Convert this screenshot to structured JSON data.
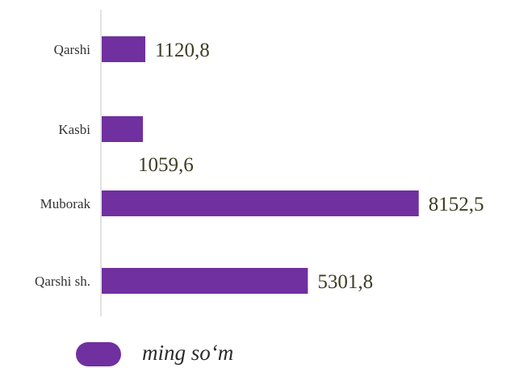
{
  "chart_data": {
    "type": "bar",
    "orientation": "horizontal",
    "categories": [
      "Qarshi",
      "Kasbi",
      "Muborak",
      "Qarshi sh."
    ],
    "series": [
      {
        "name": "ming so‘m",
        "values": [
          1120.8,
          1059.6,
          8152.5,
          5301.8
        ],
        "labels": [
          "1120,8",
          "1059,6",
          "8152,5",
          "5301,8"
        ]
      }
    ],
    "xlim": [
      0,
      8200
    ],
    "grid": false,
    "legend": "bottom-left",
    "bar_color": "#7030a0",
    "label_color": "#3d3d24",
    "category_color": "#333333"
  }
}
